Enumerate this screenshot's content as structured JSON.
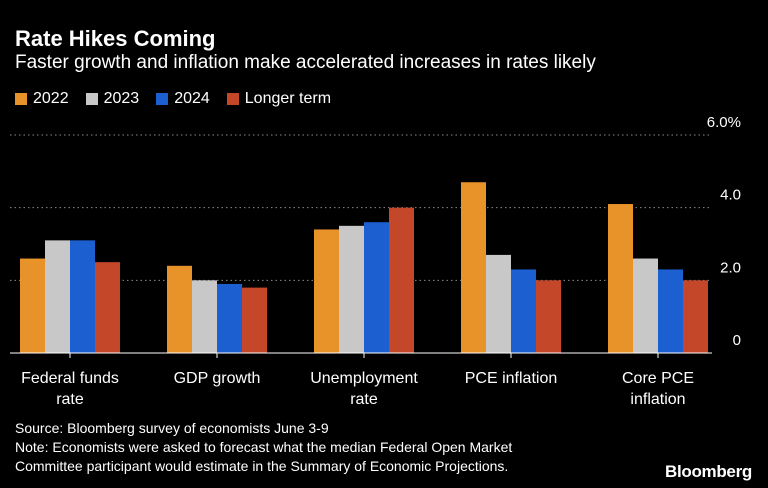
{
  "title": "Rate Hikes Coming",
  "subtitle": "Faster growth and inflation make accelerated increases in rates likely",
  "source": "Source: Bloomberg survey of economists June 3-9",
  "note_line1": "Note: Economists were asked to forecast what the median Federal Open Market",
  "note_line2": "Committee participant would estimate in the Summary of Economic Projections.",
  "logo": "Bloomberg",
  "chart_data": {
    "type": "bar",
    "title": "Rate Hikes Coming",
    "subtitle": "Faster growth and inflation make accelerated increases in rates likely",
    "categories": [
      [
        "Federal funds",
        "rate"
      ],
      [
        "GDP growth"
      ],
      [
        "Unemployment",
        "rate"
      ],
      [
        "PCE inflation"
      ],
      [
        "Core PCE",
        "inflation"
      ]
    ],
    "series": [
      {
        "name": "2022",
        "color": "#e8922a",
        "values": [
          2.6,
          2.4,
          3.4,
          4.7,
          4.1
        ]
      },
      {
        "name": "2023",
        "color": "#c8c8c8",
        "values": [
          3.1,
          2.0,
          3.5,
          2.7,
          2.6
        ]
      },
      {
        "name": "2024",
        "color": "#1c5fd0",
        "values": [
          3.1,
          1.9,
          3.6,
          2.3,
          2.3
        ]
      },
      {
        "name": "Longer term",
        "color": "#c4472a",
        "values": [
          2.5,
          1.8,
          4.0,
          2.0,
          2.0
        ]
      }
    ],
    "ylim": [
      0,
      6
    ],
    "yticks": [
      {
        "value": 0,
        "label": "0"
      },
      {
        "value": 2,
        "label": "2.0"
      },
      {
        "value": 4,
        "label": "4.0"
      },
      {
        "value": 6,
        "label": "6.0%"
      }
    ],
    "grid": true,
    "legend_position": "top-left"
  }
}
